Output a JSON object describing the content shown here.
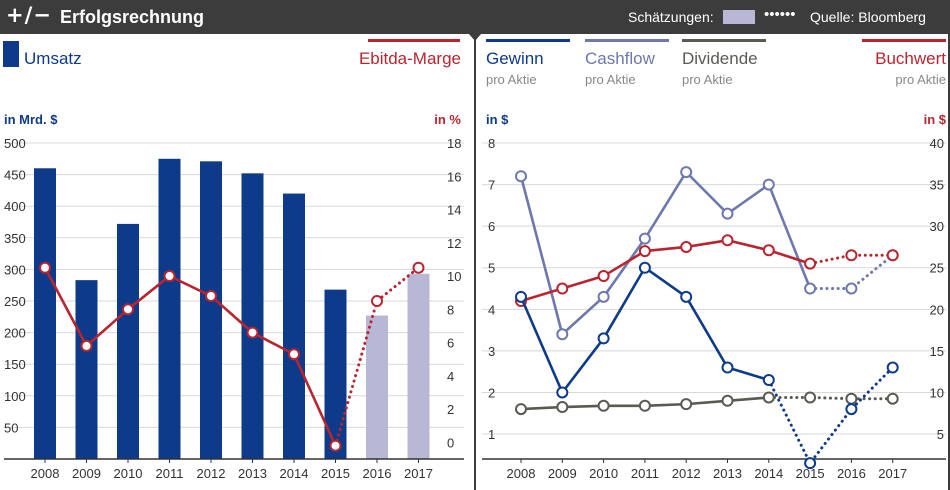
{
  "header": {
    "logo": "+/−",
    "title": "Erfolgsrechnung",
    "estimates_label": "Schätzungen:",
    "estimates_dots": "••••••",
    "source": "Quelle: Bloomberg",
    "estimate_color": "#b9b7d6"
  },
  "chart_data": [
    {
      "type": "bar",
      "legend_left": "Umsatz",
      "legend_right": "Ebitda-Marge",
      "ylabel_left": "in Mrd. $",
      "ylabel_right": "in %",
      "categories": [
        "2008",
        "2009",
        "2010",
        "2011",
        "2012",
        "2013",
        "2014",
        "2015",
        "2016",
        "2017"
      ],
      "ylim_left": [
        0,
        500
      ],
      "yticks_left": [
        50,
        100,
        150,
        200,
        250,
        300,
        350,
        400,
        450,
        500
      ],
      "ylim_right": [
        -1,
        18
      ],
      "yticks_right": [
        0,
        2,
        4,
        6,
        8,
        10,
        12,
        14,
        16,
        18
      ],
      "series": [
        {
          "name": "Umsatz",
          "kind": "bar",
          "axis": "left",
          "color": "#0e3a8a",
          "estimate_color": "#b9b7d6",
          "values": [
            460,
            283,
            372,
            475,
            471,
            452,
            420,
            268,
            227,
            293
          ],
          "estimate_from_index": 8
        },
        {
          "name": "Ebitda-Marge",
          "kind": "line",
          "axis": "right",
          "color": "#b82531",
          "values": [
            10.5,
            5.8,
            8.0,
            10.0,
            8.8,
            6.6,
            5.3,
            -0.2,
            8.5,
            10.5
          ],
          "estimate_from_index": 8
        }
      ]
    },
    {
      "type": "line",
      "ylabel_left": "in $",
      "ylabel_right": "in $",
      "categories": [
        "2008",
        "2009",
        "2010",
        "2011",
        "2012",
        "2013",
        "2014",
        "2015",
        "2016",
        "2017"
      ],
      "ylim_left": [
        0.4,
        8
      ],
      "yticks_left": [
        1,
        2,
        3,
        4,
        5,
        6,
        7,
        8
      ],
      "ylim_right": [
        2,
        40
      ],
      "yticks_right": [
        5,
        10,
        15,
        20,
        25,
        30,
        35,
        40
      ],
      "legend": [
        {
          "name": "Gewinn",
          "sub": "pro Aktie",
          "color": "#0e3a8a"
        },
        {
          "name": "Cashflow",
          "sub": "pro Aktie",
          "color": "#6e78ad"
        },
        {
          "name": "Dividende",
          "sub": "pro Aktie",
          "color": "#5a5a52"
        },
        {
          "name": "Buchwert",
          "sub": "pro Aktie",
          "color": "#b82531"
        }
      ],
      "series": [
        {
          "name": "Cashflow",
          "axis": "left",
          "color": "#6e78ad",
          "values": [
            7.2,
            3.4,
            4.3,
            5.7,
            7.3,
            6.3,
            7.0,
            4.5,
            4.5,
            5.3
          ],
          "estimate_from_index": 8
        },
        {
          "name": "Dividende",
          "axis": "left",
          "color": "#5a5a52",
          "values": [
            1.6,
            1.65,
            1.68,
            1.68,
            1.72,
            1.8,
            1.88,
            1.88,
            1.85,
            1.85
          ],
          "estimate_from_index": 7
        },
        {
          "name": "Buchwert",
          "axis": "right",
          "color": "#b82531",
          "values": [
            21.0,
            22.5,
            24.0,
            27.0,
            27.5,
            28.3,
            27.1,
            25.5,
            26.5,
            26.5
          ],
          "estimate_from_index": 8
        },
        {
          "name": "Gewinn",
          "axis": "left",
          "color": "#0e3a8a",
          "values": [
            4.3,
            2.0,
            3.3,
            5.0,
            4.3,
            2.6,
            2.3,
            0.3,
            1.6,
            2.6
          ],
          "estimate_from_index": 7
        }
      ]
    }
  ]
}
